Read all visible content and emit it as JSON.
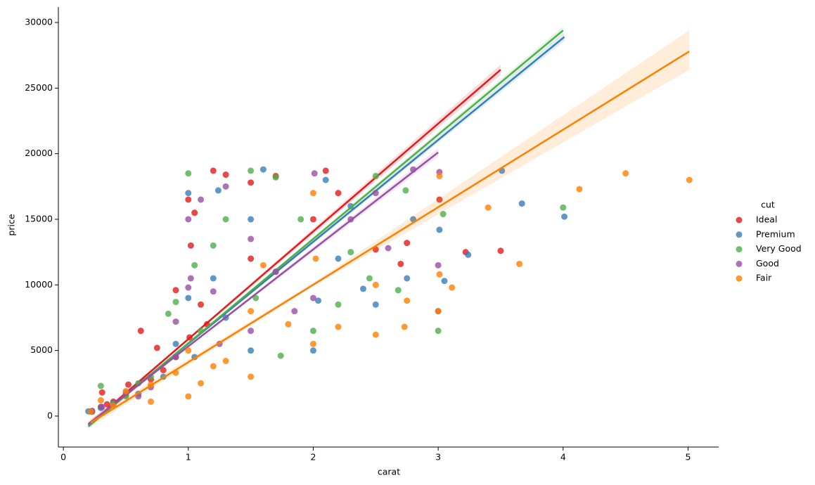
{
  "chart_data": {
    "type": "scatter",
    "xlabel": "carat",
    "ylabel": "price",
    "legend_title": "cut",
    "legend": "right",
    "xlim": [
      -0.04,
      5.245
    ],
    "ylim": [
      -2360,
      31180
    ],
    "xticks": [
      0,
      1,
      2,
      3,
      4,
      5
    ],
    "yticks": [
      0,
      5000,
      10000,
      15000,
      20000,
      25000,
      30000
    ],
    "series": [
      {
        "name": "Ideal",
        "color": "#e41a1c",
        "x": [
          0.23,
          0.3,
          0.31,
          0.4,
          0.5,
          0.52,
          0.62,
          0.7,
          0.75,
          0.9,
          0.9,
          1.0,
          1.01,
          1.02,
          1.05,
          1.1,
          1.2,
          1.3,
          1.5,
          1.5,
          1.7,
          2.0,
          2.1,
          2.2,
          2.5,
          2.7,
          2.75,
          3.01,
          3.22,
          3.5,
          0.35,
          0.8,
          1.15
        ],
        "values": [
          330,
          700,
          1800,
          1100,
          1600,
          2400,
          6500,
          2800,
          5200,
          4500,
          9600,
          16500,
          6000,
          13000,
          15500,
          8500,
          18700,
          18400,
          12000,
          17800,
          18300,
          15000,
          18700,
          17000,
          12700,
          11600,
          13200,
          16500,
          12500,
          12600,
          900,
          3500,
          7000
        ],
        "fit": {
          "x": [
            0.2,
            1.0,
            3.5
          ],
          "y": [
            -700,
            5870,
            26400
          ],
          "ci_low": [
            -900,
            5780,
            26000
          ],
          "ci_high": [
            -500,
            5960,
            26800
          ]
        }
      },
      {
        "name": "Premium",
        "color": "#377eb8",
        "x": [
          0.2,
          0.3,
          0.4,
          0.6,
          0.8,
          1.0,
          1.0,
          1.05,
          1.2,
          1.24,
          1.5,
          1.5,
          1.6,
          1.7,
          2.0,
          2.04,
          2.1,
          2.2,
          2.4,
          2.5,
          2.75,
          2.8,
          3.01,
          3.05,
          3.24,
          3.51,
          3.67,
          4.01,
          0.9,
          1.3,
          2.3
        ],
        "values": [
          360,
          620,
          1000,
          1700,
          3000,
          9000,
          17000,
          4500,
          10500,
          17200,
          5000,
          15000,
          18800,
          11000,
          5000,
          8800,
          18000,
          12000,
          9700,
          8500,
          10500,
          15000,
          14200,
          10300,
          12300,
          18700,
          16200,
          15200,
          5500,
          7500,
          16000
        ],
        "fit": {
          "x": [
            0.2,
            1.0,
            4.01
          ],
          "y": [
            -700,
            5515,
            28900
          ],
          "ci_low": [
            -850,
            5460,
            28600
          ],
          "ci_high": [
            -550,
            5570,
            29200
          ]
        }
      },
      {
        "name": "Very Good",
        "color": "#4daf4a",
        "x": [
          0.23,
          0.3,
          0.4,
          0.5,
          0.7,
          0.84,
          0.9,
          1.0,
          1.05,
          1.1,
          1.2,
          1.5,
          1.54,
          1.7,
          1.74,
          1.9,
          2.0,
          2.2,
          2.45,
          2.5,
          2.68,
          2.74,
          3.0,
          3.04,
          4.0,
          0.6,
          1.3,
          2.3
        ],
        "values": [
          350,
          2300,
          900,
          1500,
          3000,
          7800,
          8700,
          18500,
          11500,
          6500,
          13000,
          18700,
          9000,
          18200,
          4600,
          15000,
          6500,
          8500,
          10500,
          18300,
          9600,
          17200,
          6500,
          15400,
          15900,
          2500,
          15000,
          12500
        ],
        "fit": {
          "x": [
            0.2,
            1.0,
            4.0
          ],
          "y": [
            -800,
            5558,
            29400
          ],
          "ci_low": [
            -950,
            5500,
            29100
          ],
          "ci_high": [
            -650,
            5620,
            29700
          ]
        }
      },
      {
        "name": "Good",
        "color": "#984ea3",
        "x": [
          0.23,
          0.31,
          0.5,
          0.7,
          0.9,
          0.9,
          1.0,
          1.0,
          1.02,
          1.1,
          1.2,
          1.3,
          1.5,
          1.5,
          1.7,
          1.85,
          2.0,
          2.01,
          2.3,
          2.5,
          2.6,
          2.8,
          3.0,
          3.01,
          3.0,
          0.6,
          1.25
        ],
        "values": [
          400,
          700,
          1800,
          2200,
          4500,
          7200,
          9800,
          15000,
          10500,
          16500,
          9500,
          17500,
          6500,
          13500,
          11000,
          8000,
          9000,
          18500,
          15000,
          17000,
          12800,
          18800,
          11500,
          18600,
          8000,
          1500,
          5500
        ],
        "fit": {
          "x": [
            0.2,
            1.0,
            3.0
          ],
          "y": [
            -600,
            5314,
            20100
          ],
          "ci_low": [
            -800,
            5240,
            19800
          ],
          "ci_high": [
            -400,
            5390,
            20400
          ]
        }
      },
      {
        "name": "Fair",
        "color": "#ff7f00",
        "x": [
          0.22,
          0.3,
          0.4,
          0.5,
          0.7,
          0.7,
          0.9,
          1.0,
          1.0,
          1.2,
          1.5,
          1.5,
          1.6,
          1.8,
          2.0,
          2.0,
          2.02,
          2.2,
          2.5,
          2.5,
          2.73,
          2.75,
          3.01,
          3.0,
          3.01,
          3.11,
          3.4,
          3.65,
          4.13,
          4.5,
          5.01,
          1.1,
          1.3
        ],
        "values": [
          340,
          1200,
          800,
          1900,
          2400,
          1100,
          3300,
          5000,
          1500,
          3800,
          3000,
          8000,
          11500,
          7000,
          5500,
          17000,
          12000,
          6800,
          6200,
          10000,
          6800,
          8800,
          18300,
          8000,
          10800,
          9800,
          15900,
          11600,
          17300,
          18500,
          18000,
          2500,
          4200
        ],
        "fit": {
          "x": [
            0.22,
            2.0,
            5.01
          ],
          "y": [
            -500,
            10016,
            27800
          ],
          "ci_low": [
            -800,
            9900,
            26400
          ],
          "ci_high": [
            -200,
            10150,
            29400
          ]
        }
      }
    ]
  }
}
